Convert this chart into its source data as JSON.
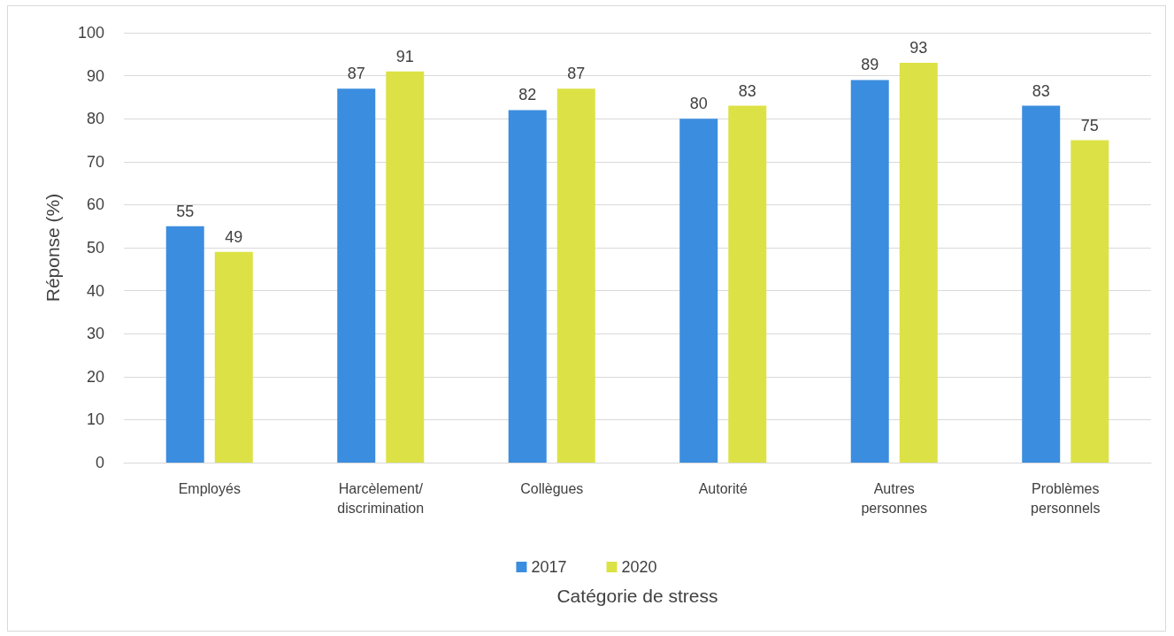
{
  "chart_data": {
    "type": "bar",
    "xlabel": "Catégorie de stress",
    "ylabel": "Réponse (%)",
    "categories": [
      "Employés",
      "Harcèlement/discrimination",
      "Collègues",
      "Autorité",
      "Autres personnes",
      "Problèmes personnels"
    ],
    "series": [
      {
        "name": "2017",
        "color": "#3b8ddf",
        "values": [
          55,
          87,
          82,
          80,
          89,
          83
        ]
      },
      {
        "name": "2020",
        "color": "#dce245",
        "values": [
          49,
          91,
          87,
          83,
          93,
          75
        ]
      }
    ],
    "ylim": [
      0,
      100
    ],
    "yticks": [
      0,
      10,
      20,
      30,
      40,
      50,
      60,
      70,
      80,
      90,
      100
    ],
    "grid": "y",
    "legend": "bottom",
    "data_labels": true
  }
}
